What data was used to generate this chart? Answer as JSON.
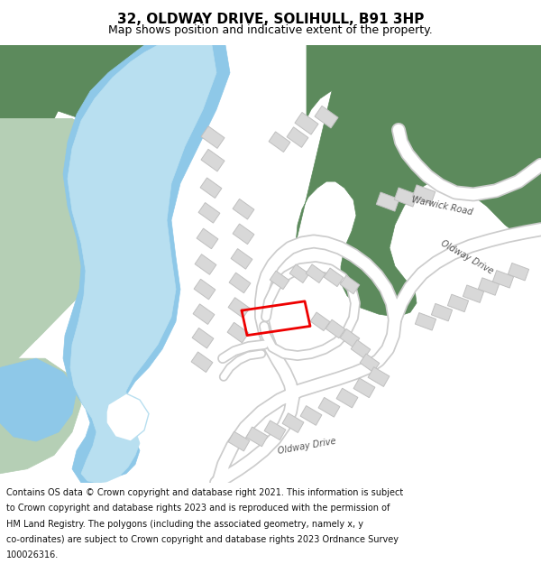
{
  "title": "32, OLDWAY DRIVE, SOLIHULL, B91 3HP",
  "subtitle": "Map shows position and indicative extent of the property.",
  "footer_lines": [
    "Contains OS data © Crown copyright and database right 2021. This information is subject",
    "to Crown copyright and database rights 2023 and is reproduced with the permission of",
    "HM Land Registry. The polygons (including the associated geometry, namely x, y",
    "co-ordinates) are subject to Crown copyright and database rights 2023 Ordnance Survey",
    "100026316."
  ],
  "map_bg": "#f0f0f0",
  "green_dark": "#5c8a5c",
  "green_light": "#b5cfb5",
  "water_blue": "#8ec8e8",
  "water_light": "#b8dff0",
  "road_fill": "#ffffff",
  "road_edge": "#cccccc",
  "building_fill": "#d8d8d8",
  "building_edge": "#c0c0c0",
  "plot_color": "#ee0000",
  "title_fontsize": 11,
  "subtitle_fontsize": 9,
  "footer_fontsize": 7
}
